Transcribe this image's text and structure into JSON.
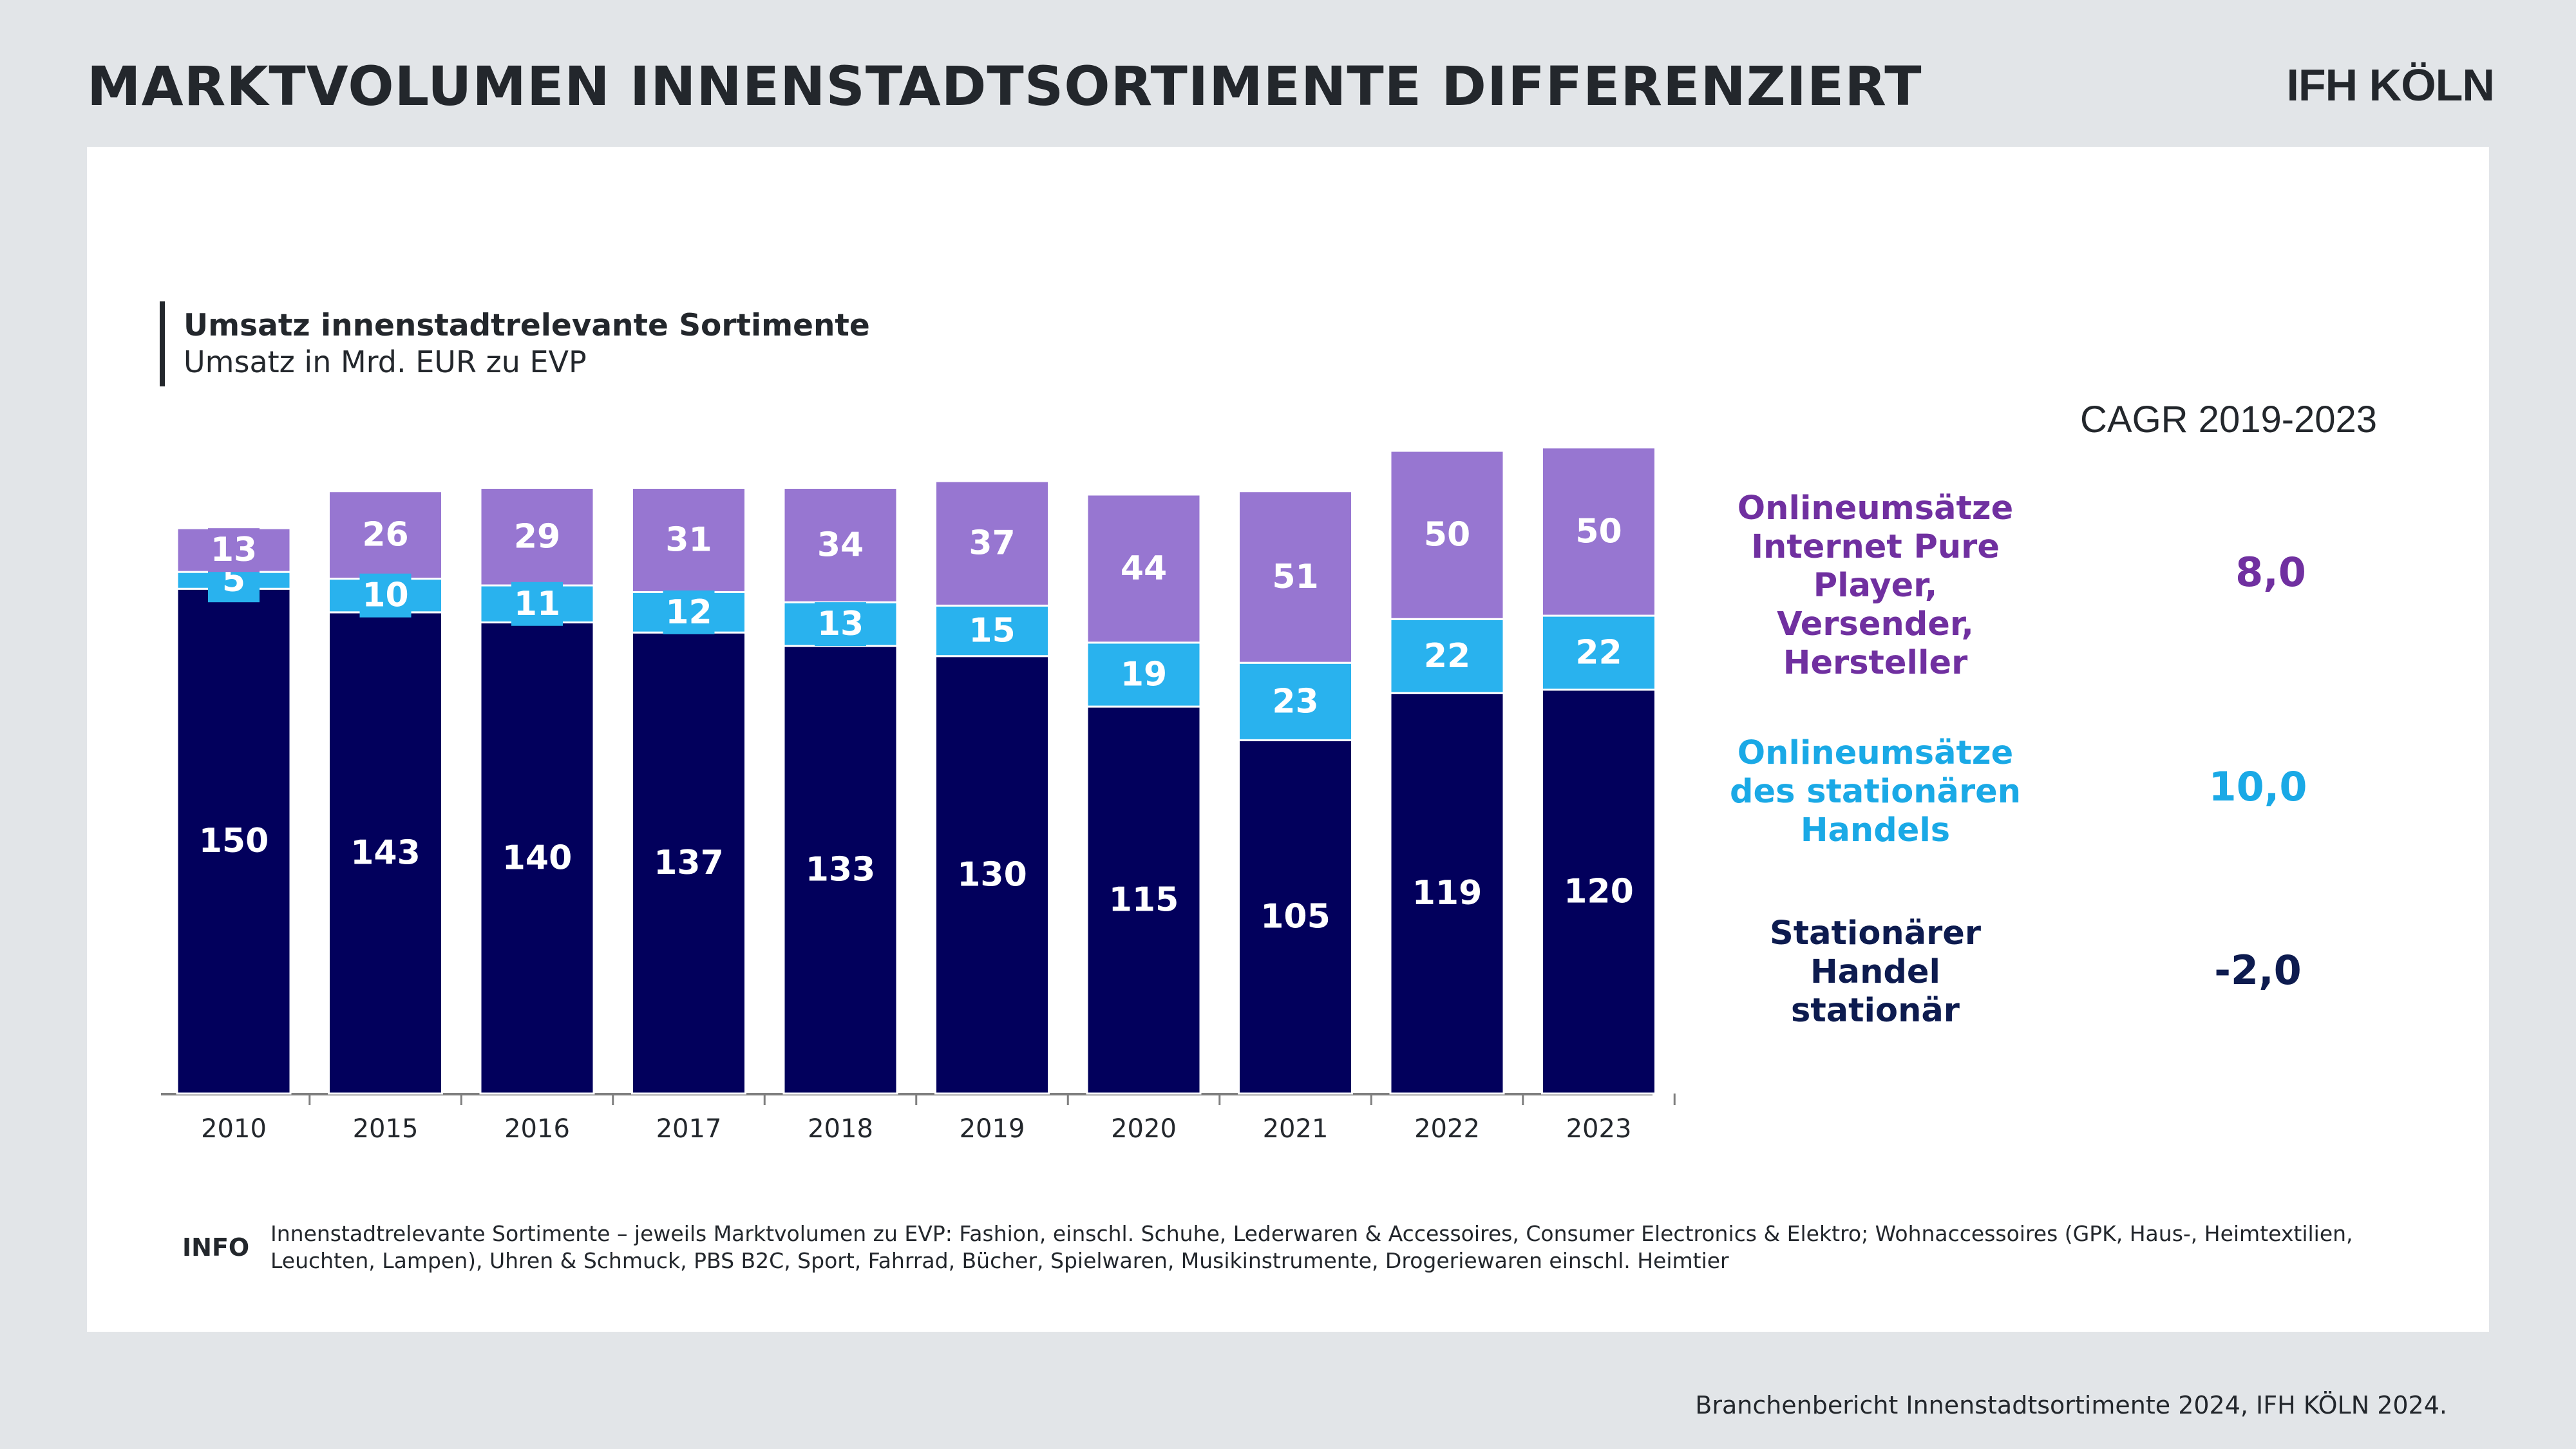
{
  "header": {
    "title": "MARKTVOLUMEN INNENSTADTSORTIMENTE DIFFERENZIERT",
    "logo_text": "IFH KÖLN"
  },
  "chart_data": {
    "type": "bar",
    "stacked": true,
    "title": "Umsatz innenstadtrelevante Sortimente",
    "subtitle": "Umsatz in Mrd. EUR zu EVP",
    "categories": [
      "2010",
      "2015",
      "2016",
      "2017",
      "2018",
      "2019",
      "2020",
      "2021",
      "2022",
      "2023"
    ],
    "series": [
      {
        "name": "Stationärer Handel stationär",
        "color": "#02005c",
        "values": [
          150,
          143,
          140,
          137,
          133,
          130,
          115,
          105,
          119,
          120
        ]
      },
      {
        "name": "Onlineumsätze des stationären Handels",
        "color": "#29b2ee",
        "values": [
          5,
          10,
          11,
          12,
          13,
          15,
          19,
          23,
          22,
          22
        ]
      },
      {
        "name": "Onlineumsätze Internet Pure Player, Versender, Hersteller",
        "color": "#9776d1",
        "values": [
          13,
          26,
          29,
          31,
          34,
          37,
          44,
          51,
          50,
          50
        ]
      }
    ],
    "ylim": [
      0,
      200
    ],
    "grid": false,
    "legend_placement": "right"
  },
  "cagr": {
    "header": "CAGR 2019-2023",
    "items": [
      {
        "label": "Onlineumsätze\nInternet Pure\nPlayer,\nVersender,\nHersteller",
        "value": "8,0",
        "color": "#7030a0"
      },
      {
        "label": "Onlineumsätze\ndes stationären\nHandels",
        "value": "10,0",
        "color": "#1aa9e6"
      },
      {
        "label": "Stationärer\nHandel\nstationär",
        "value": "-2,0",
        "color": "#0d1b4f"
      }
    ]
  },
  "info": {
    "label": "INFO",
    "text": "Innenstadtrelevante Sortimente – jeweils Marktvolumen zu EVP: Fashion, einschl. Schuhe, Lederwaren & Accessoires,  Consumer Electronics & Elektro;  Wohnaccessoires (GPK, Haus-, Heimtextilien, Leuchten, Lampen), Uhren & Schmuck, PBS B2C, Sport, Fahrrad, Bücher, Spielwaren, Musikinstrumente, Drogeriewaren einschl. Heimtier"
  },
  "source": "Branchenbericht Innenstadtsortimente 2024, IFH KÖLN 2024."
}
